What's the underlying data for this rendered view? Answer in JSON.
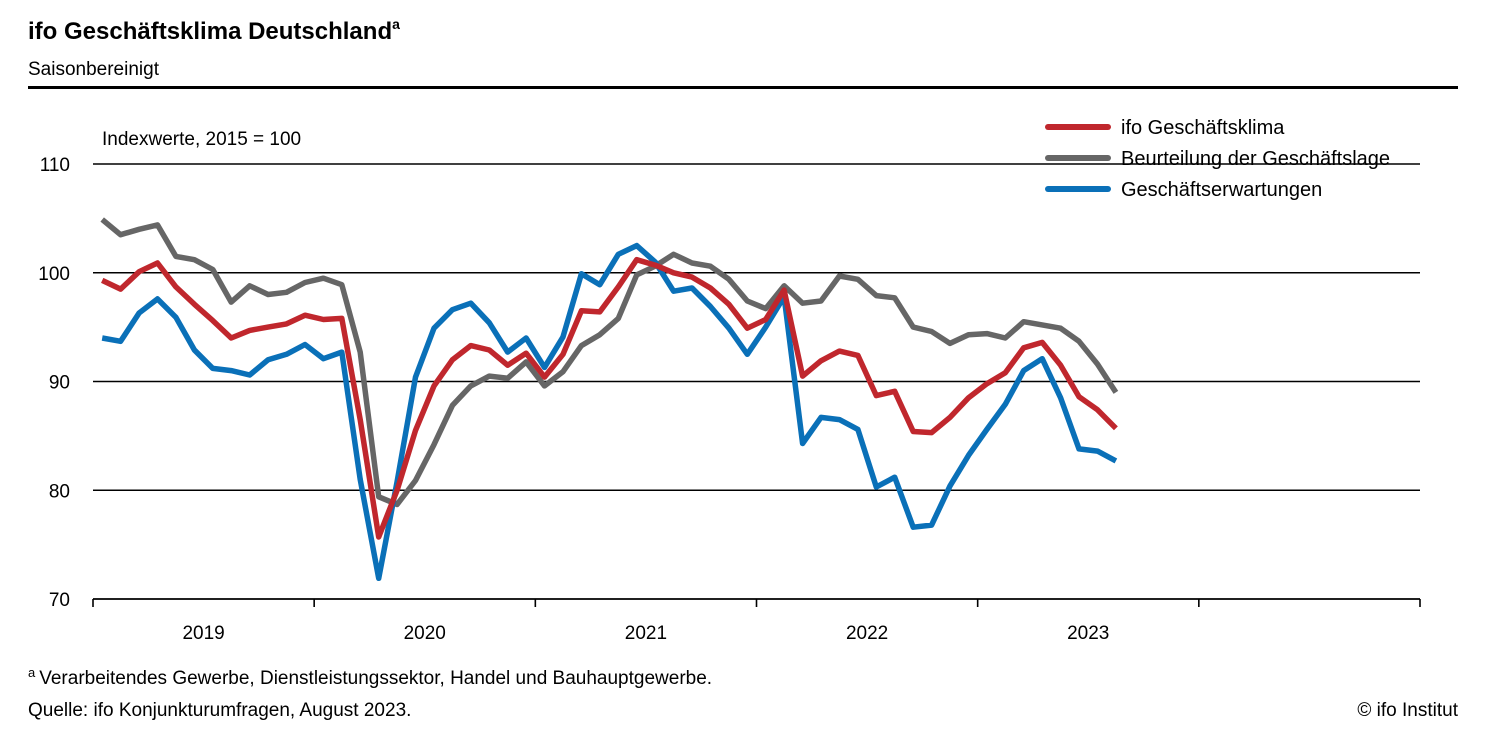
{
  "chart_data": {
    "type": "line",
    "title": "ifo Geschäftsklima Deutschland",
    "title_superscript": "a",
    "subtitle": "Saisonbereinigt",
    "ylabel": "Indexwerte, 2015 = 100",
    "ylim": [
      70,
      110
    ],
    "yticks": [
      "70",
      "80",
      "90",
      "100",
      "110"
    ],
    "x_start": "2019-01",
    "x_end": "2023-08",
    "frequency": "monthly",
    "xticks": [
      "2019",
      "2020",
      "2021",
      "2022",
      "2023"
    ],
    "grid": "horizontal",
    "legend_position": "top-right",
    "series": [
      {
        "name": "ifo Geschäftsklima",
        "color": "#c0272d",
        "values": [
          99.3,
          98.5,
          100.1,
          100.9,
          98.7,
          97.1,
          95.6,
          94.0,
          94.7,
          95.0,
          95.3,
          96.1,
          95.7,
          95.8,
          86.5,
          75.7,
          80.0,
          85.5,
          89.6,
          92.0,
          93.3,
          92.9,
          91.5,
          92.6,
          90.4,
          92.5,
          96.5,
          96.4,
          98.7,
          101.2,
          100.7,
          100.0,
          99.6,
          98.6,
          97.1,
          94.9,
          95.7,
          98.4,
          90.5,
          91.9,
          92.8,
          92.4,
          88.7,
          89.1,
          85.4,
          85.3,
          86.7,
          88.5,
          89.8,
          90.8,
          93.1,
          93.6,
          91.5,
          88.6,
          87.4,
          85.7
        ]
      },
      {
        "name": "Beurteilung der Geschäftslage",
        "color": "#666666",
        "values": [
          104.9,
          103.5,
          104.0,
          104.4,
          101.5,
          101.2,
          100.3,
          97.3,
          98.8,
          98.0,
          98.2,
          99.1,
          99.5,
          98.9,
          92.7,
          79.4,
          78.7,
          80.9,
          84.2,
          87.8,
          89.6,
          90.5,
          90.3,
          91.8,
          89.6,
          90.9,
          93.3,
          94.3,
          95.8,
          99.8,
          100.6,
          101.7,
          100.9,
          100.6,
          99.4,
          97.4,
          96.7,
          98.8,
          97.2,
          97.4,
          99.7,
          99.4,
          97.9,
          97.7,
          95.0,
          94.6,
          93.5,
          94.3,
          94.4,
          94.0,
          95.5,
          95.2,
          94.9,
          93.7,
          91.6,
          89.0
        ]
      },
      {
        "name": "Geschäftserwartungen",
        "color": "#0a70b8",
        "values": [
          94.0,
          93.7,
          96.3,
          97.6,
          95.9,
          92.9,
          91.2,
          91.0,
          90.6,
          92.0,
          92.5,
          93.4,
          92.1,
          92.7,
          81.0,
          71.9,
          80.8,
          90.4,
          94.9,
          96.6,
          97.2,
          95.4,
          92.7,
          94.0,
          91.3,
          94.1,
          99.9,
          98.9,
          101.7,
          102.5,
          101.0,
          98.3,
          98.6,
          96.9,
          94.9,
          92.5,
          95.0,
          97.8,
          84.3,
          86.7,
          86.5,
          85.6,
          80.3,
          81.2,
          76.6,
          76.8,
          80.4,
          83.2,
          85.6,
          87.9,
          91.0,
          92.1,
          88.5,
          83.8,
          83.6,
          82.7
        ]
      }
    ]
  },
  "footnote": {
    "marker": "a",
    "text": "Verarbeitendes Gewerbe, Dienstleistungssektor, Handel und Bauhauptgewerbe."
  },
  "source": "Quelle: ifo Konjunkturumfragen, August 2023.",
  "copyright": "© ifo Institut"
}
